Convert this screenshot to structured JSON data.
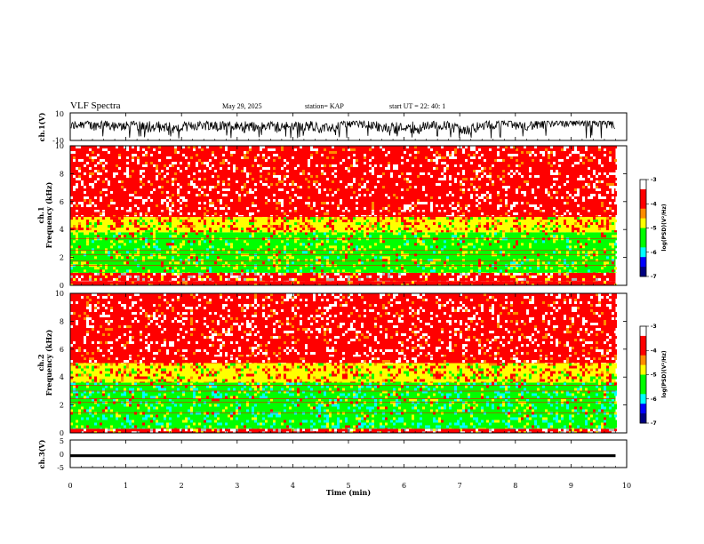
{
  "header": {
    "title": "VLF Spectra",
    "date": "May 29, 2025",
    "station": "station= KAP",
    "start_ut": "start  UT  =   22: 40: 1"
  },
  "chart_data": [
    {
      "type": "line",
      "name": "ch1-waveform",
      "ylabel": "ch.1(V)",
      "ylim": [
        -10,
        10
      ],
      "ytick_labels": [
        "10",
        "-10"
      ],
      "xlim": [
        0,
        10
      ],
      "data_end_min": 9.8,
      "range_min": -8.5,
      "range_max": 4
    },
    {
      "type": "heatmap",
      "name": "ch1-spectrogram",
      "ylabel_top": "ch.1",
      "ylabel": "Frequency  (kHz)",
      "ylim": [
        0,
        10
      ],
      "ytick_labels": [
        "0",
        "2",
        "4",
        "6",
        "8",
        "10"
      ],
      "xlim": [
        0,
        10
      ],
      "data_end_min": 9.8,
      "colorbar": {
        "label": "log(PSD)(V²/Hz)",
        "range": [
          -7,
          -3
        ],
        "tick_labels": [
          "-3",
          "-4",
          "-5",
          "-6",
          "-7"
        ]
      },
      "bands": [
        {
          "from": 0.0,
          "to": 0.3,
          "level": "red"
        },
        {
          "from": 0.3,
          "to": 0.9,
          "level": "mixed"
        },
        {
          "from": 0.9,
          "to": 3.8,
          "level": "green-yellow"
        },
        {
          "from": 3.8,
          "to": 4.9,
          "level": "yellow-red"
        },
        {
          "from": 4.9,
          "to": 10.0,
          "level": "red-white"
        }
      ]
    },
    {
      "type": "heatmap",
      "name": "ch2-spectrogram",
      "ylabel_top": "ch.2",
      "ylabel": "Frequency  (kHz)",
      "ylim": [
        0,
        10
      ],
      "ytick_labels": [
        "0",
        "2",
        "4",
        "6",
        "8",
        "10"
      ],
      "xlim": [
        0,
        10
      ],
      "data_end_min": 9.8,
      "colorbar": {
        "label": "log(PSD)(V²/Hz)",
        "range": [
          -7,
          -3
        ],
        "tick_labels": [
          "-3",
          "-4",
          "-5",
          "-6",
          "-7"
        ]
      },
      "bands": [
        {
          "from": 0.0,
          "to": 0.3,
          "level": "mixed"
        },
        {
          "from": 0.3,
          "to": 3.6,
          "level": "green-cyan"
        },
        {
          "from": 3.6,
          "to": 5.0,
          "level": "yellow-red"
        },
        {
          "from": 5.0,
          "to": 10.0,
          "level": "red-white"
        }
      ]
    },
    {
      "type": "line",
      "name": "ch3-waveform",
      "ylabel": "ch.3(V)",
      "ylim": [
        -5,
        5
      ],
      "ytick_labels": [
        "5",
        "0",
        "-5"
      ],
      "xlim": [
        0,
        10
      ],
      "data_end_min": 9.8,
      "range_min": -1.2,
      "range_max": -0.2
    }
  ],
  "xaxis": {
    "label": "Time  (min)",
    "ticks": [
      0,
      1,
      2,
      3,
      4,
      5,
      6,
      7,
      8,
      9,
      10
    ],
    "tick_labels": [
      "0",
      "1",
      "2",
      "3",
      "4",
      "5",
      "6",
      "7",
      "8",
      "9",
      "10"
    ]
  },
  "colors": {
    "white": "#ffffff",
    "red": "#ff0000",
    "orange": "#ff8c00",
    "yellow": "#ffff00",
    "green": "#00ff00",
    "cyan": "#00ffff",
    "blue": "#0000ff",
    "navy": "#000080",
    "grey": "#b4b4b4"
  }
}
